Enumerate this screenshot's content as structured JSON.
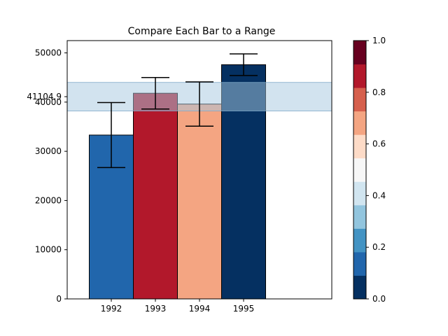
{
  "chart_data": {
    "type": "bar",
    "title": "Compare Each Bar to a Range",
    "xlabel": "",
    "ylabel": "",
    "categories": [
      "1992",
      "1993",
      "1994",
      "1995"
    ],
    "values": [
      33300,
      41800,
      39600,
      47600
    ],
    "errors": [
      6600,
      3200,
      4500,
      2200
    ],
    "bar_colors": [
      "#2166ac",
      "#b2182b",
      "#f4a582",
      "#053061"
    ],
    "ylim": [
      0,
      52500
    ],
    "xlim": [
      1991,
      1997
    ],
    "yticks": [
      0,
      10000,
      20000,
      30000,
      40000,
      50000
    ],
    "yticklabels": [
      "0",
      "10000",
      "20000",
      "30000",
      "40000",
      "50000"
    ],
    "range_band": {
      "low": 38200,
      "high": 44000,
      "color": "#a6c8e0",
      "label": "41104.9",
      "label_value": 41104.9
    },
    "colorbar": {
      "min": 0,
      "max": 1,
      "ticks": [
        0.0,
        0.2,
        0.4,
        0.6,
        0.8,
        1.0
      ],
      "ticklabels": [
        "0.0",
        "0.2",
        "0.4",
        "0.6",
        "0.8",
        "1.0"
      ],
      "colors": [
        "#053061",
        "#2166ac",
        "#4393c3",
        "#92c5de",
        "#d1e5f0",
        "#f7f7f7",
        "#fddbc7",
        "#f4a582",
        "#d6604d",
        "#b2182b",
        "#67001f"
      ]
    },
    "grid": false,
    "legend": "none"
  }
}
